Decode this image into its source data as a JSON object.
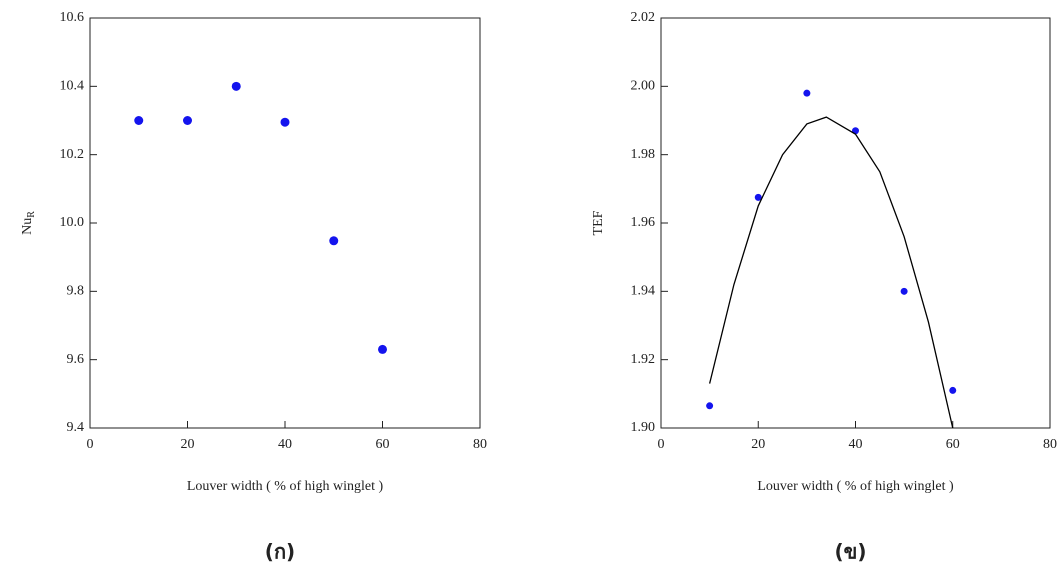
{
  "chart_data": [
    {
      "type": "scatter",
      "caption": "(ก)",
      "xlabel": "Louver width ( % of high winglet )",
      "ylabel": "Nu",
      "ylabel_subscript": "R",
      "xlim": [
        0,
        80
      ],
      "xticks": [
        0,
        20,
        40,
        60,
        80
      ],
      "ylim": [
        9.4,
        10.6
      ],
      "yticks": [
        9.4,
        9.6,
        9.8,
        {
          "value": 10.0,
          "label": "10.0"
        },
        10.2,
        10.4,
        10.6
      ],
      "series": [
        {
          "color": "#1414ee",
          "x": [
            10,
            20,
            30,
            40,
            50,
            60
          ],
          "values": [
            10.3,
            10.3,
            10.4,
            10.295,
            9.948,
            9.63
          ]
        }
      ]
    },
    {
      "type": "scatter",
      "caption": "(ข)",
      "xlabel": "Louver width ( % of high winglet )",
      "ylabel": "TEF",
      "xlim": [
        0,
        80
      ],
      "xticks": [
        0,
        20,
        40,
        60,
        80
      ],
      "ylim": [
        1.9,
        2.02
      ],
      "yticks": [
        {
          "value": 1.9,
          "label": "1.90"
        },
        1.92,
        1.94,
        1.96,
        1.98,
        {
          "value": 2.0,
          "label": "2.00"
        },
        2.02
      ],
      "series": [
        {
          "color": "#1414ee",
          "x": [
            10,
            20,
            30,
            40,
            50,
            60
          ],
          "values": [
            1.9065,
            1.9675,
            1.998,
            1.987,
            1.94,
            1.911
          ]
        },
        {
          "color": "#000000",
          "line": true,
          "x": [
            10,
            15,
            20,
            25,
            30,
            34,
            40,
            45,
            50,
            55,
            60
          ],
          "values": [
            1.913,
            1.942,
            1.965,
            1.98,
            1.989,
            1.991,
            1.986,
            1.975,
            1.956,
            1.931,
            1.9
          ]
        }
      ]
    }
  ]
}
